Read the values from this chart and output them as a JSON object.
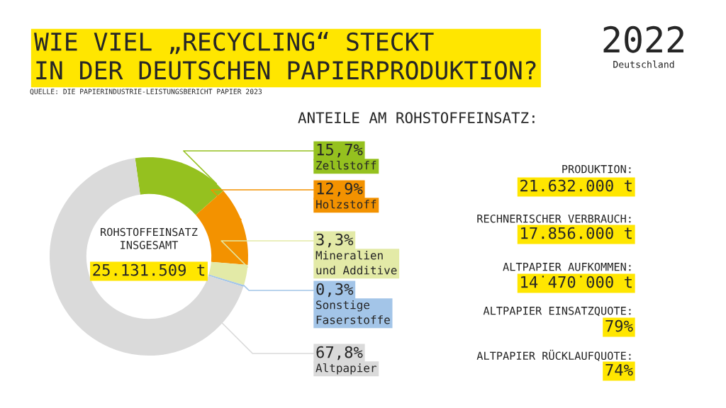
{
  "chart_data": {
    "type": "donut",
    "title": "WIE VIEL „RECYCLING“ STECKT\nIN DER DEUTSCHEN PAPIERPRODUKTION?",
    "categories": [
      "Zellstoff",
      "Holzstoff",
      "Mineralien\nund Additive",
      "Sonstige\nFaserstoffe",
      "Altpapier"
    ],
    "values": [
      15.7,
      12.9,
      3.3,
      0.3,
      67.8
    ],
    "value_labels": [
      "15,7%",
      "12,9%",
      "3,3%",
      "0,3%",
      "67,8%"
    ],
    "colors": [
      "#95c11f",
      "#f39200",
      "#e3eaa7",
      "#a3c5e8",
      "#dadada"
    ],
    "legend": "right",
    "annotations": [
      "QUELLE: DIE PAPIERINDUSTRIE-LEISTUNGSBERICHT PAPIER 2023",
      "2022",
      "Deutschland",
      "ANTEILE AM ROHSTOFFEINSATZ:",
      "ROHSTOFFEINSATZ\nINSGESAMT",
      "25.131.509 t",
      "PRODUKTION:",
      "21.632.000 t",
      "RECHNERISCHER VERBRAUCH:",
      "17.856.000 t",
      "ALTPAPIER AUFKOMMEN:",
      "14˙470˙000 t",
      "ALTPAPIER EINSATZQUOTE:",
      "79%",
      "ALTPAPIER RÜCKLAUFQUOTE:",
      "74%"
    ]
  }
}
